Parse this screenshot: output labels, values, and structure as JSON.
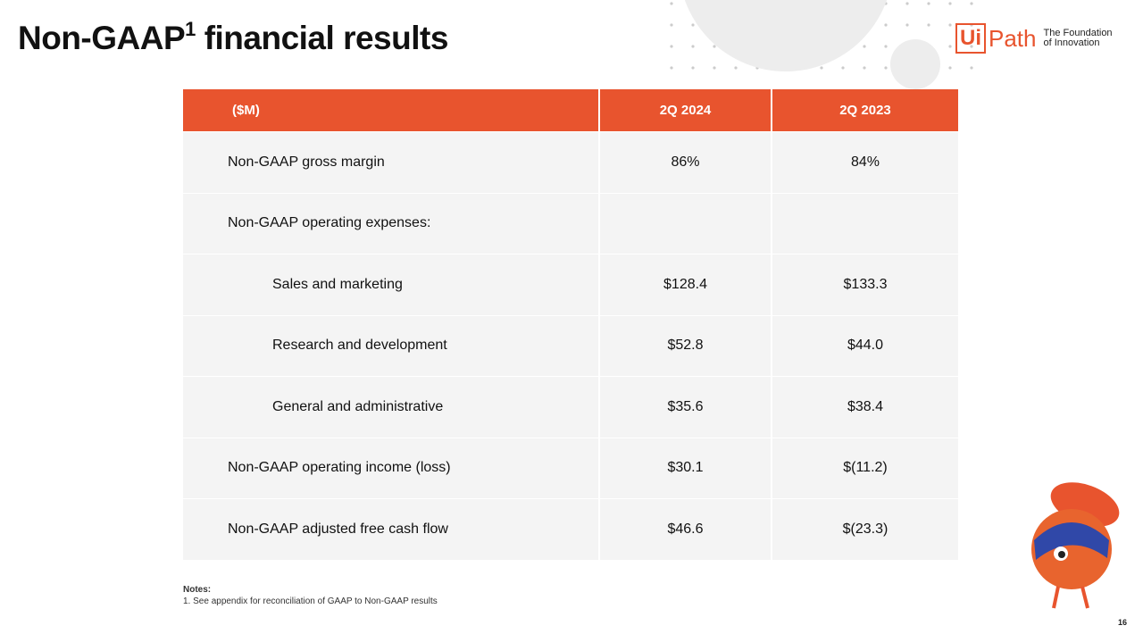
{
  "header": {
    "title": {
      "main": "Non-GAAP",
      "sup": "1",
      "rest": "financial results"
    },
    "logo": {
      "left": "Ui",
      "right": "Path",
      "tagline": [
        "The Foundation",
        "of Innovation"
      ]
    }
  },
  "table": {
    "columns": [
      "($M)",
      "2Q 2024",
      "2Q 2023"
    ],
    "rows": [
      {
        "label": "Non-GAAP gross margin",
        "values": [
          "86%",
          "84%"
        ]
      },
      {
        "label": "Non-GAAP operating expenses:",
        "items": [
          {
            "label": "Sales and marketing",
            "values": [
              "$128.4",
              "$133.3"
            ]
          },
          {
            "label": "Research and development",
            "values": [
              "$52.8",
              "$44.0"
            ]
          },
          {
            "label": "General and administrative",
            "values": [
              "$35.6",
              "$38.4"
            ]
          }
        ]
      },
      {
        "label": "Non-GAAP operating income (loss)",
        "values": [
          "$30.1",
          "$(11.2)"
        ]
      },
      {
        "label": "Non-GAAP adjusted free cash flow",
        "values": [
          "$46.6",
          "$(23.3)"
        ]
      }
    ]
  },
  "notes": {
    "heading": "Notes:",
    "items": [
      "1. See appendix for reconciliation of GAAP to Non-GAAP results"
    ]
  },
  "page_number": "16"
}
